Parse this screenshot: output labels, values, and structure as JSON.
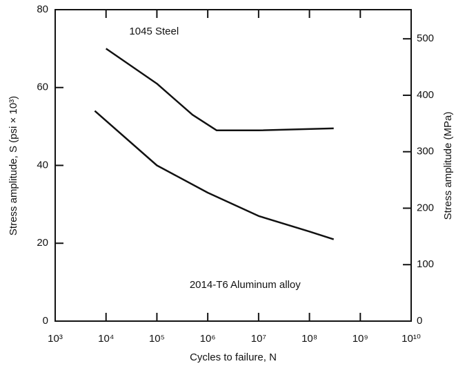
{
  "chart_data": {
    "type": "line",
    "x_label": "Cycles to failure, N",
    "y_label": "Stress amplitude, S (psi × 10³)",
    "y2_label": "Stress amplitude (MPa)",
    "x_scale": "log",
    "xlim": [
      1000,
      10000000000
    ],
    "xticks": [
      {
        "value": 1000,
        "label": "10³"
      },
      {
        "value": 10000,
        "label": "10⁴"
      },
      {
        "value": 100000,
        "label": "10⁵"
      },
      {
        "value": 1000000,
        "label": "10⁶"
      },
      {
        "value": 10000000,
        "label": "10⁷"
      },
      {
        "value": 100000000,
        "label": "10⁸"
      },
      {
        "value": 1000000000,
        "label": "10⁹"
      },
      {
        "value": 10000000000,
        "label": "10¹⁰"
      }
    ],
    "ylim": [
      0,
      80
    ],
    "yticks": [
      0,
      20,
      40,
      60,
      80
    ],
    "y2lim": [
      0,
      551.6
    ],
    "y2ticks": [
      0,
      100,
      200,
      300,
      400,
      500
    ],
    "series": [
      {
        "name": "1045 Steel",
        "color": "#111111",
        "x": [
          10000,
          100000,
          500000,
          1500000,
          10000000,
          300000000
        ],
        "values": [
          70,
          61,
          53,
          49,
          49,
          49.5
        ]
      },
      {
        "name": "2014-T6 Aluminum alloy",
        "color": "#111111",
        "x": [
          6000,
          100000,
          1000000,
          10000000,
          100000000,
          300000000
        ],
        "values": [
          54,
          40,
          33,
          27,
          23,
          21
        ]
      }
    ]
  }
}
